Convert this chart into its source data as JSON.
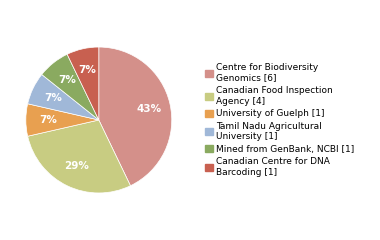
{
  "labels": [
    "Centre for Biodiversity\nGenomics [6]",
    "Canadian Food Inspection\nAgency [4]",
    "University of Guelph [1]",
    "Tamil Nadu Agricultural\nUniversity [1]",
    "Mined from GenBank, NCBI [1]",
    "Canadian Centre for DNA\nBarcoding [1]"
  ],
  "values": [
    6,
    4,
    1,
    1,
    1,
    1
  ],
  "colors": [
    "#d4908a",
    "#c8cc82",
    "#e8a050",
    "#a0b8d8",
    "#8aaa60",
    "#c86050"
  ],
  "legend_fontsize": 6.5,
  "autopct_fontsize": 7.5,
  "figsize": [
    3.8,
    2.4
  ],
  "dpi": 100
}
